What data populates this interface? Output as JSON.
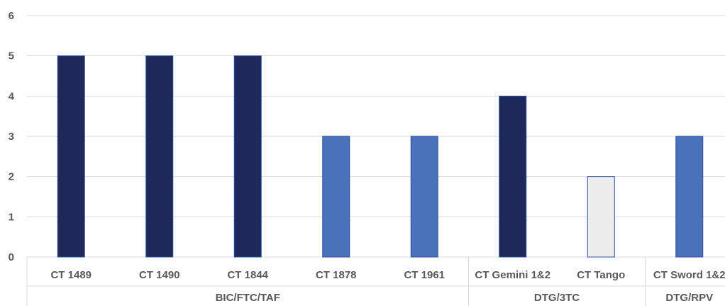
{
  "chart_data": {
    "type": "bar",
    "ylim": [
      0,
      6
    ],
    "yticks": [
      "0",
      "1",
      "2",
      "3",
      "4",
      "5",
      "6"
    ],
    "grid": true,
    "categories": [
      "CT 1489",
      "CT 1490",
      "CT 1844",
      "CT 1878",
      "CT 1961",
      "CT Gemini 1&2",
      "CT Tango",
      "CT Sword 1&2"
    ],
    "values": [
      5,
      5,
      5,
      3,
      3,
      4,
      2,
      3
    ],
    "bar_colors": [
      "#1f285a",
      "#1f285a",
      "#1f285a",
      "#4a72bb",
      "#4a72bb",
      "#1f285a",
      "#ececec",
      "#4a72bb"
    ],
    "groups": [
      {
        "label": "BIC/FTC/TAF",
        "start": 0,
        "end": 4
      },
      {
        "label": "DTG/3TC",
        "start": 5,
        "end": 6
      },
      {
        "label": "DTG/RPV",
        "start": 7,
        "end": 7
      }
    ],
    "colors": {
      "grid": "#d9d9d9",
      "axis": "#d9d9d9",
      "bar_outline": "#2f4f9a"
    }
  }
}
